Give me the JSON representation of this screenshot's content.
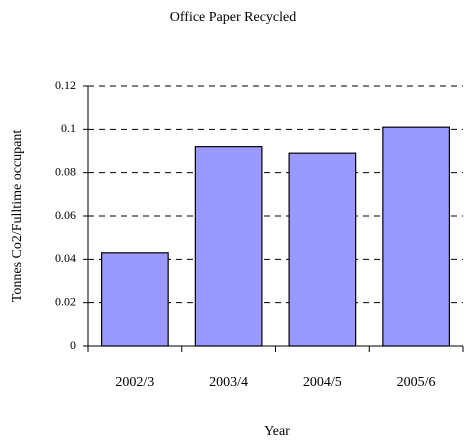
{
  "chart_data": {
    "type": "bar",
    "title": "Office Paper Recycled",
    "x_label": "Year",
    "y_label": "Tonnes Co2/Fulltime occupant",
    "categories": [
      "2002/3",
      "2003/4",
      "2004/5",
      "2005/6"
    ],
    "values": [
      0.043,
      0.092,
      0.089,
      0.101
    ],
    "color": "#9999ff",
    "ylim": [
      0,
      0.12
    ],
    "yticks": [
      0,
      0.02,
      0.04,
      0.06,
      0.08,
      0.1,
      0.12
    ],
    "grid": true
  }
}
